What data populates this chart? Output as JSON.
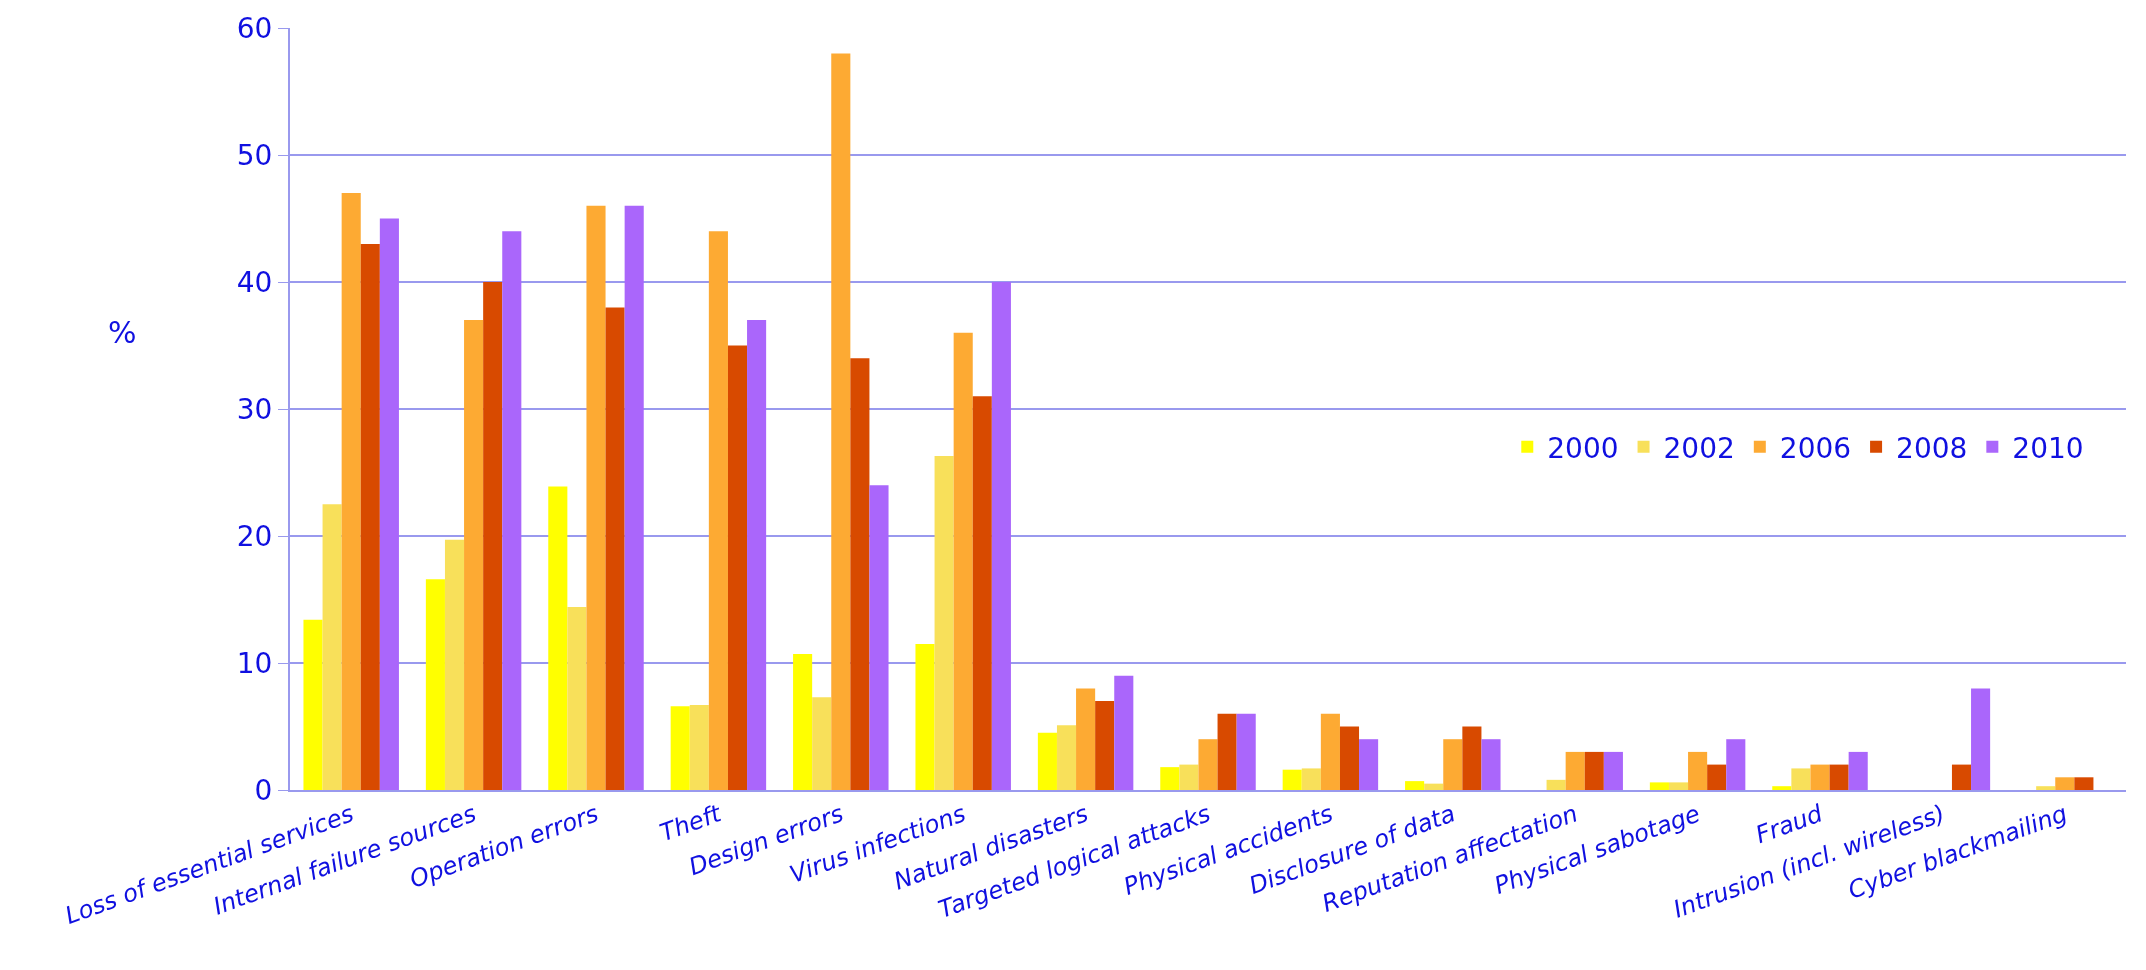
{
  "chart_data": {
    "type": "bar",
    "ylabel": "%",
    "categories": [
      "Loss of essential services",
      "Internal failure sources",
      "Operation errors",
      "Theft",
      "Design errors",
      "Virus infections",
      "Natural disasters",
      "Targeted logical attacks",
      "Physical accidents",
      "Disclosure of data",
      "Reputation affectation",
      "Physical sabotage",
      "Fraud",
      "Intrusion (incl. wireless)",
      "Cyber blackmailing"
    ],
    "series": [
      {
        "name": "2000",
        "color": "#ffff00",
        "values": [
          13.4,
          16.6,
          23.9,
          6.6,
          10.7,
          11.5,
          4.5,
          1.8,
          1.6,
          0.7,
          null,
          0.6,
          0.3,
          null,
          null
        ]
      },
      {
        "name": "2002",
        "color": "#f8e05a",
        "values": [
          22.5,
          19.7,
          14.4,
          6.7,
          7.3,
          26.3,
          5.1,
          2,
          1.7,
          0.5,
          0.8,
          0.6,
          1.7,
          null,
          0.3
        ]
      },
      {
        "name": "2006",
        "color": "#fdaa33",
        "values": [
          47,
          37,
          46,
          44,
          58,
          36,
          8,
          4,
          6,
          4,
          3,
          3,
          2,
          null,
          1
        ]
      },
      {
        "name": "2008",
        "color": "#d84a00",
        "values": [
          43,
          40,
          38,
          35,
          34,
          31,
          7,
          6,
          5,
          5,
          3,
          2,
          2,
          2,
          1
        ]
      },
      {
        "name": "2010",
        "color": "#aa66fb",
        "values": [
          45,
          44,
          46,
          37,
          24,
          40,
          9,
          6,
          4,
          4,
          3,
          4,
          3,
          8,
          null
        ]
      }
    ],
    "ylim": [
      0,
      60
    ],
    "yticks": [
      0,
      10,
      20,
      30,
      40,
      50,
      60
    ],
    "grid": "y",
    "legend": "right"
  }
}
